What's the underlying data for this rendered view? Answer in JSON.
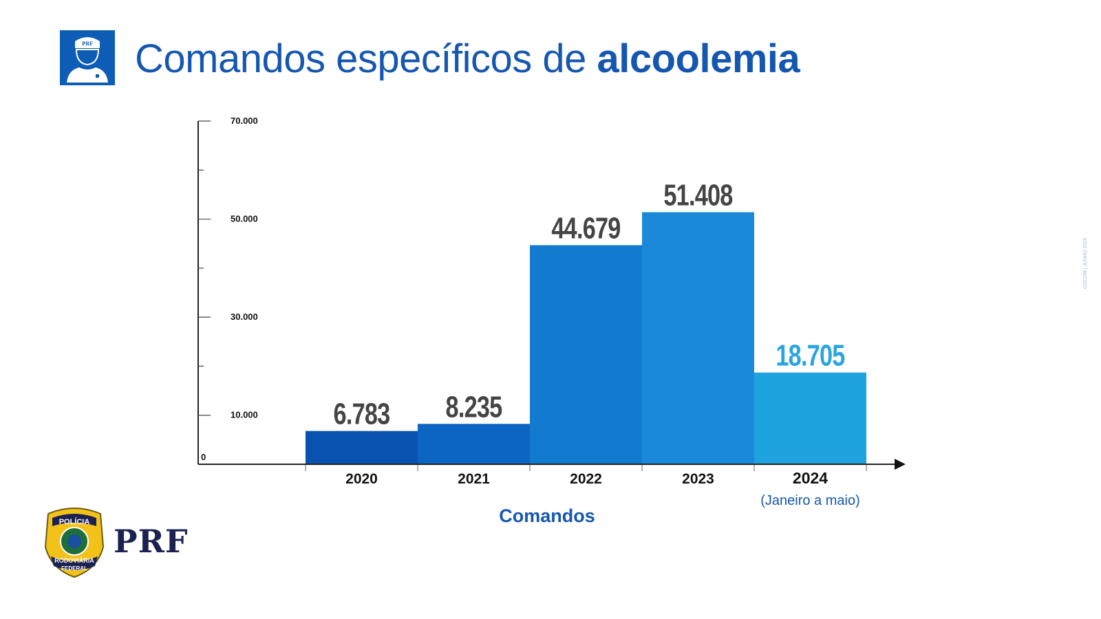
{
  "title": {
    "regular": "Comandos específicos de ",
    "bold": "alcoolemia"
  },
  "header_icon": "prf-officer-icon",
  "header_icon_text": "PRF",
  "watermark": "CGCOM | JUNHO 2024",
  "logo": {
    "badge_text": [
      "POLÍCIA",
      "RODOVIÁRIA",
      "FEDERAL"
    ],
    "wordmark": "PRF"
  },
  "chart_data": {
    "type": "bar",
    "title": "Comandos específicos de alcoolemia",
    "xlabel": "Comandos",
    "ylabel": "",
    "categories": [
      "2020",
      "2021",
      "2022",
      "2023",
      "2024"
    ],
    "category_notes": {
      "2024": "(Janeiro a maio)"
    },
    "values": [
      6783,
      8235,
      44679,
      51408,
      18705
    ],
    "value_labels": [
      "6.783",
      "8.235",
      "44.679",
      "51.408",
      "18.705"
    ],
    "ylim": [
      0,
      70000
    ],
    "y_tick_labels": [
      {
        "value": 0,
        "label": "0"
      },
      {
        "value": 10000,
        "label": "10.000"
      },
      {
        "value": 30000,
        "label": "30.000"
      },
      {
        "value": 50000,
        "label": "50.000"
      },
      {
        "value": 70000,
        "label": "70.000"
      }
    ],
    "y_minor_ticks": [
      20000,
      40000,
      60000
    ],
    "grid": false,
    "legend": "none",
    "colors": [
      "#0a52b0",
      "#0c65c2",
      "#127acf",
      "#1a89d9",
      "#1ea3df"
    ],
    "value_label_colors": [
      "#444444",
      "#444444",
      "#444444",
      "#444444",
      "#2aa5e0"
    ],
    "accent": "#1557b0"
  }
}
